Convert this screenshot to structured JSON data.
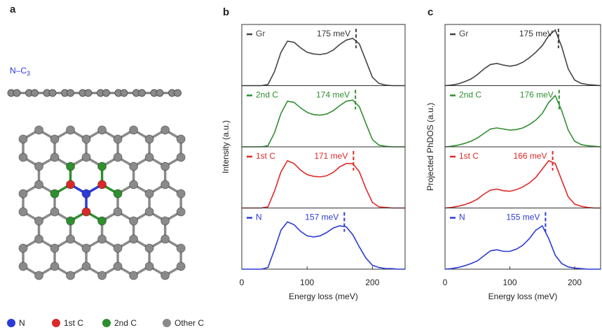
{
  "panel_labels": [
    "a",
    "b",
    "c"
  ],
  "structure": {
    "label": "N–C",
    "label_subscript": "3",
    "legend": [
      {
        "name": "N",
        "color": "#2b3bd6"
      },
      {
        "name": "1st C",
        "color": "#d92a2a"
      },
      {
        "name": "2nd C",
        "color": "#2f8f2f"
      },
      {
        "name": "Other C",
        "color": "#8a8a8a"
      }
    ]
  },
  "chart_data": [
    {
      "type": "line",
      "xlabel": "Energy loss (meV)",
      "ylabel": "Intensity (a.u.)",
      "xlim": [
        0,
        250
      ],
      "xticks": [
        0,
        100,
        200
      ],
      "ylim": [
        0,
        1.1
      ],
      "x": [
        0,
        10,
        20,
        30,
        40,
        50,
        60,
        70,
        80,
        90,
        100,
        110,
        120,
        130,
        140,
        150,
        160,
        170,
        180,
        190,
        200,
        210,
        220,
        230,
        240,
        250
      ],
      "series": [
        {
          "name": "Gr",
          "color": "#444444",
          "values": [
            0,
            0,
            0,
            0,
            0.02,
            0.25,
            0.6,
            0.8,
            0.78,
            0.68,
            0.6,
            0.57,
            0.56,
            0.58,
            0.64,
            0.74,
            0.82,
            0.85,
            0.75,
            0.45,
            0.15,
            0.04,
            0.01,
            0,
            0,
            0
          ],
          "peak": {
            "values": [
              175
            ],
            "value_labels": [
              "175 meV"
            ]
          }
        },
        {
          "name": "2nd C",
          "color": "#2f8f2f",
          "values": [
            0,
            0,
            0,
            0,
            0.02,
            0.25,
            0.6,
            0.82,
            0.8,
            0.7,
            0.62,
            0.58,
            0.57,
            0.59,
            0.65,
            0.74,
            0.82,
            0.84,
            0.72,
            0.42,
            0.13,
            0.03,
            0.01,
            0,
            0,
            0
          ],
          "peak": {
            "values": [
              174
            ],
            "value_labels": [
              "174 meV"
            ]
          }
        },
        {
          "name": "1st C",
          "color": "#e02828",
          "values": [
            0,
            0,
            0,
            0,
            0.02,
            0.3,
            0.65,
            0.85,
            0.8,
            0.68,
            0.6,
            0.57,
            0.56,
            0.58,
            0.64,
            0.74,
            0.8,
            0.8,
            0.65,
            0.35,
            0.1,
            0.02,
            0.01,
            0,
            0,
            0
          ],
          "peak": {
            "values": [
              171
            ],
            "value_labels": [
              "171 meV"
            ]
          }
        },
        {
          "name": "N",
          "color": "#2b3bd6",
          "values": [
            0,
            0,
            0,
            0,
            0.03,
            0.35,
            0.7,
            0.85,
            0.8,
            0.68,
            0.6,
            0.58,
            0.6,
            0.66,
            0.74,
            0.78,
            0.76,
            0.62,
            0.4,
            0.2,
            0.07,
            0.03,
            0.01,
            0.01,
            0,
            0
          ],
          "peak": {
            "values": [
              157
            ],
            "value_labels": [
              "157 meV"
            ]
          }
        }
      ]
    },
    {
      "type": "line",
      "xlabel": "Energy loss (meV)",
      "ylabel": "Projected PhDOS (a.u.)",
      "xlim": [
        0,
        240
      ],
      "xticks": [
        0,
        100,
        200
      ],
      "ylim": [
        0,
        1.1
      ],
      "x": [
        0,
        10,
        20,
        30,
        40,
        50,
        60,
        70,
        80,
        90,
        100,
        110,
        120,
        130,
        140,
        150,
        160,
        170,
        180,
        190,
        200,
        210,
        220,
        230,
        240
      ],
      "series": [
        {
          "name": "Gr",
          "color": "#444444",
          "values": [
            0,
            0.01,
            0.03,
            0.07,
            0.12,
            0.2,
            0.3,
            0.38,
            0.4,
            0.37,
            0.35,
            0.37,
            0.42,
            0.5,
            0.6,
            0.72,
            0.9,
            1.0,
            0.7,
            0.3,
            0.1,
            0.04,
            0.02,
            0.01,
            0
          ],
          "peak": {
            "values": [
              175
            ],
            "value_labels": [
              "175 meV"
            ]
          }
        },
        {
          "name": "2nd C",
          "color": "#2f8f2f",
          "values": [
            0,
            0.01,
            0.03,
            0.06,
            0.1,
            0.16,
            0.24,
            0.32,
            0.34,
            0.32,
            0.3,
            0.31,
            0.34,
            0.4,
            0.48,
            0.6,
            0.8,
            0.92,
            0.65,
            0.3,
            0.1,
            0.04,
            0.02,
            0.01,
            0
          ],
          "peak": {
            "values": [
              176
            ],
            "value_labels": [
              "176 meV"
            ]
          }
        },
        {
          "name": "1st C",
          "color": "#e02828",
          "values": [
            0,
            0.01,
            0.03,
            0.06,
            0.1,
            0.16,
            0.25,
            0.32,
            0.34,
            0.31,
            0.3,
            0.33,
            0.38,
            0.45,
            0.55,
            0.7,
            0.85,
            0.8,
            0.5,
            0.2,
            0.07,
            0.03,
            0.01,
            0,
            0
          ],
          "peak": {
            "values": [
              166
            ],
            "value_labels": [
              "166 meV"
            ]
          }
        },
        {
          "name": "N",
          "color": "#2b3bd6",
          "values": [
            0,
            0.01,
            0.03,
            0.06,
            0.1,
            0.15,
            0.24,
            0.33,
            0.35,
            0.32,
            0.32,
            0.36,
            0.43,
            0.55,
            0.7,
            0.78,
            0.55,
            0.25,
            0.1,
            0.04,
            0.02,
            0.01,
            0,
            0,
            0
          ],
          "peak": {
            "values": [
              155
            ],
            "value_labels": [
              "155 meV"
            ]
          }
        }
      ]
    }
  ]
}
